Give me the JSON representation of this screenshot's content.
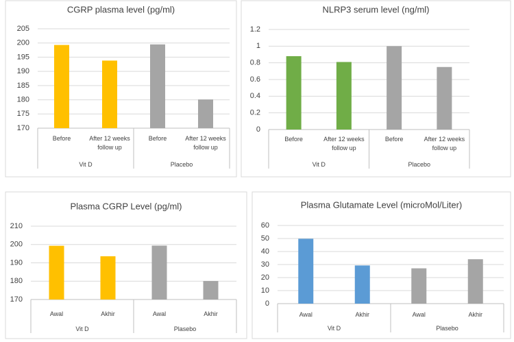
{
  "chart_data": [
    {
      "type": "bar",
      "title": "CGRP plasma level (pg/ml)",
      "categories": [
        "Before",
        "After 12 weeks follow up",
        "Before",
        "After 12 weeks follow up"
      ],
      "groups": [
        "Vit D",
        "Placebo"
      ],
      "values": [
        199.3,
        193.8,
        199.5,
        180.1
      ],
      "colors": [
        "#ffc000",
        "#ffc000",
        "#a5a5a5",
        "#a5a5a5"
      ],
      "ylim": [
        170,
        205
      ],
      "yticks": [
        170,
        175,
        180,
        185,
        190,
        195,
        200,
        205
      ],
      "grid": true
    },
    {
      "type": "bar",
      "title": "NLRP3 serum level  (ng/ml)",
      "categories": [
        "Before",
        "After 12 weeks follow up",
        "Before",
        "After 12 weeks follow up"
      ],
      "groups": [
        "Vit D",
        "Placebo"
      ],
      "values": [
        0.88,
        0.81,
        1.0,
        0.75
      ],
      "colors": [
        "#70ad47",
        "#70ad47",
        "#a5a5a5",
        "#a5a5a5"
      ],
      "ylim": [
        0,
        1.2
      ],
      "yticks": [
        0,
        0.2,
        0.4,
        0.6,
        0.8,
        1,
        1.2
      ],
      "grid": true
    },
    {
      "type": "bar",
      "title": "Plasma CGRP Level (pg/ml)",
      "categories": [
        "Awal",
        "Akhir",
        "Awal",
        "Akhir"
      ],
      "groups": [
        "Vit D",
        "Plasebo"
      ],
      "values": [
        199.3,
        193.6,
        199.4,
        180.1
      ],
      "colors": [
        "#ffc000",
        "#ffc000",
        "#a5a5a5",
        "#a5a5a5"
      ],
      "ylim": [
        170,
        210
      ],
      "yticks": [
        170,
        180,
        190,
        200,
        210
      ],
      "grid": true
    },
    {
      "type": "bar",
      "title": "Plasma Glutamate Level (microMol/Liter)",
      "categories": [
        "Awal",
        "Akhir",
        "Awal",
        "Akhir"
      ],
      "groups": [
        "Vit D",
        "Plasebo"
      ],
      "values": [
        49.8,
        29.3,
        27.1,
        34.1
      ],
      "colors": [
        "#5b9bd5",
        "#5b9bd5",
        "#a5a5a5",
        "#a5a5a5"
      ],
      "ylim": [
        0,
        60
      ],
      "yticks": [
        0,
        10,
        20,
        30,
        40,
        50,
        60
      ],
      "grid": true
    }
  ]
}
